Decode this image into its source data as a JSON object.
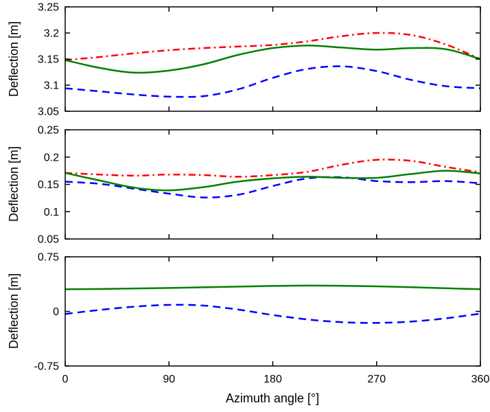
{
  "figure": {
    "background": "#ffffff",
    "axis_color": "#000000",
    "xlabel": "Azimuth angle [°]",
    "xlim": [
      0,
      360
    ],
    "xticks": [
      "0",
      "90",
      "180",
      "270",
      "360"
    ],
    "grid": false,
    "legend": "none"
  },
  "chart_data": [
    {
      "id": "top",
      "type": "line",
      "title": "",
      "ylabel": "Deflection [m]",
      "ylim": [
        3.05,
        3.25
      ],
      "yticks": [
        "3.05",
        "3.1",
        "3.15",
        "3.2",
        "3.25"
      ],
      "x": [
        0,
        30,
        60,
        90,
        120,
        150,
        180,
        210,
        240,
        270,
        300,
        330,
        360
      ],
      "series": [
        {
          "name": "blue-dashed",
          "color": "#0000ff",
          "style": "dashed",
          "values": [
            3.094,
            3.088,
            3.082,
            3.078,
            3.079,
            3.092,
            3.114,
            3.131,
            3.136,
            3.127,
            3.11,
            3.098,
            3.094
          ]
        },
        {
          "name": "red-dashdot",
          "color": "#ff0000",
          "style": "dashdot",
          "values": [
            3.148,
            3.154,
            3.161,
            3.167,
            3.171,
            3.174,
            3.177,
            3.184,
            3.194,
            3.2,
            3.196,
            3.178,
            3.15
          ]
        },
        {
          "name": "green-solid",
          "color": "#008000",
          "style": "solid",
          "values": [
            3.148,
            3.133,
            3.124,
            3.128,
            3.14,
            3.158,
            3.171,
            3.176,
            3.172,
            3.168,
            3.171,
            3.169,
            3.15
          ]
        }
      ]
    },
    {
      "id": "middle",
      "type": "line",
      "title": "",
      "ylabel": "Deflection [m]",
      "ylim": [
        0.05,
        0.25
      ],
      "yticks": [
        "0.05",
        "0.1",
        "0.15",
        "0.2",
        "0.25"
      ],
      "x": [
        0,
        30,
        60,
        90,
        120,
        150,
        180,
        210,
        240,
        270,
        300,
        330,
        360
      ],
      "series": [
        {
          "name": "blue-dashed",
          "color": "#0000ff",
          "style": "dashed",
          "values": [
            0.155,
            0.151,
            0.142,
            0.133,
            0.126,
            0.131,
            0.147,
            0.161,
            0.163,
            0.156,
            0.154,
            0.156,
            0.152
          ]
        },
        {
          "name": "red-dashdot",
          "color": "#ff0000",
          "style": "dashdot",
          "values": [
            0.171,
            0.168,
            0.166,
            0.168,
            0.167,
            0.164,
            0.167,
            0.173,
            0.186,
            0.195,
            0.193,
            0.182,
            0.172
          ]
        },
        {
          "name": "green-solid",
          "color": "#008000",
          "style": "solid",
          "values": [
            0.171,
            0.157,
            0.144,
            0.139,
            0.145,
            0.155,
            0.161,
            0.164,
            0.162,
            0.162,
            0.169,
            0.175,
            0.17
          ]
        }
      ]
    },
    {
      "id": "bottom",
      "type": "line",
      "title": "",
      "ylabel": "Deflection [m]",
      "ylim": [
        -0.75,
        0.75
      ],
      "yticks": [
        "-0.75",
        "0",
        "0.75"
      ],
      "x": [
        0,
        30,
        60,
        90,
        120,
        150,
        180,
        210,
        240,
        270,
        300,
        330,
        360
      ],
      "series": [
        {
          "name": "blue-dashed",
          "color": "#0000ff",
          "style": "dashed",
          "values": [
            -0.035,
            0.02,
            0.065,
            0.09,
            0.08,
            0.025,
            -0.05,
            -0.11,
            -0.148,
            -0.158,
            -0.14,
            -0.095,
            -0.03
          ]
        },
        {
          "name": "green-solid",
          "color": "#008000",
          "style": "solid",
          "values": [
            0.305,
            0.308,
            0.315,
            0.322,
            0.331,
            0.341,
            0.35,
            0.355,
            0.352,
            0.344,
            0.332,
            0.318,
            0.306
          ]
        }
      ]
    }
  ]
}
